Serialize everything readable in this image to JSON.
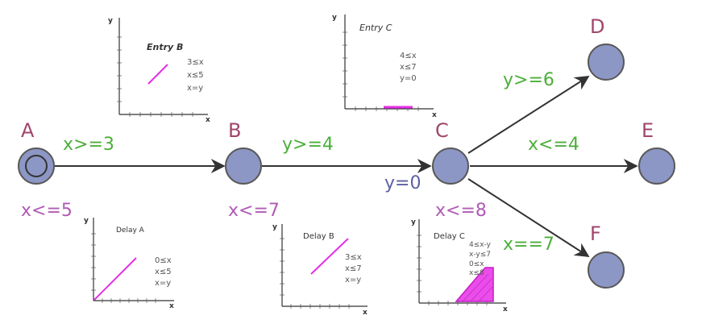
{
  "locations": {
    "A": "A",
    "B": "B",
    "C": "C",
    "D": "D",
    "E": "E",
    "F": "F"
  },
  "guards": {
    "ab": "x>=3",
    "bc": "y>=4",
    "cd": "y>=6",
    "ce": "x<=4",
    "cf": "x==7"
  },
  "invariants": {
    "a": "x<=5",
    "b": "x<=7",
    "c": "x<=8"
  },
  "resets": {
    "bc": "y=0"
  },
  "plots": {
    "entry_b": {
      "title": "Entry B",
      "constraints": [
        "3≤x",
        "x≤5",
        "x=y"
      ]
    },
    "entry_c": {
      "title": "Entry C",
      "constraints": [
        "4≤x",
        "x≤7",
        "y=0"
      ]
    },
    "delay_a": {
      "title": "Delay A",
      "constraints": [
        "0≤x",
        "x≤5",
        "x=y"
      ]
    },
    "delay_b": {
      "title": "Delay B",
      "constraints": [
        "3≤x",
        "x≤7",
        "x=y"
      ]
    },
    "delay_c": {
      "title": "Delay C",
      "constraints": [
        "4≤x-y",
        "x-y≤7",
        "0≤x",
        "x≤8"
      ]
    }
  },
  "axes": {
    "x": "x",
    "y": "y"
  },
  "colors": {
    "node_fill": "#8d97c6",
    "node_stroke": "#595959",
    "edge": "#333333",
    "location_label": "#a0466c",
    "guard": "#4caf3a",
    "invariant": "#b05bb5",
    "reset": "#5d5fa3",
    "zone": "#e62ee6"
  }
}
